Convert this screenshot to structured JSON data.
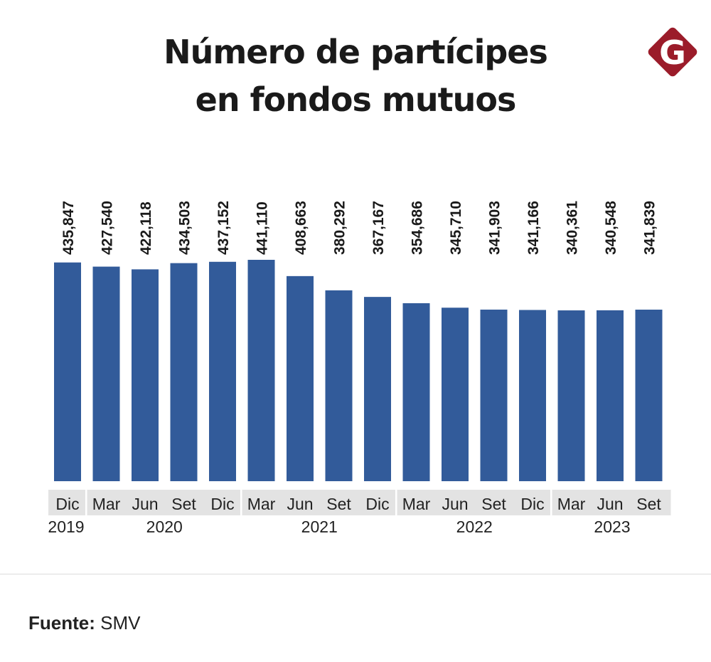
{
  "title_line1": "Número de partícipes",
  "title_line2": "en fondos mutuos",
  "logo": {
    "text": "G",
    "color": "#9b1c2a"
  },
  "source_label": "Fuente:",
  "source_value": "SMV",
  "chart_data": {
    "type": "bar",
    "bar_color": "#325b9a",
    "categories": [
      "Dic",
      "Mar",
      "Jun",
      "Set",
      "Dic",
      "Mar",
      "Jun",
      "Set",
      "Dic",
      "Mar",
      "Jun",
      "Set",
      "Dic",
      "Mar",
      "Jun",
      "Set"
    ],
    "values": [
      435847,
      427540,
      422118,
      434503,
      437152,
      441110,
      408663,
      380292,
      367167,
      354686,
      345710,
      341903,
      341166,
      340361,
      340548,
      341839
    ],
    "data_labels": [
      "435,847",
      "427,540",
      "422,118",
      "434,503",
      "437,152",
      "441,110",
      "408,663",
      "380,292",
      "367,167",
      "354,686",
      "345,710",
      "341,903",
      "341,166",
      "340,361",
      "340,548",
      "341,839"
    ],
    "year_groups": [
      {
        "year": "2019",
        "count": 1
      },
      {
        "year": "2020",
        "count": 4
      },
      {
        "year": "2021",
        "count": 4
      },
      {
        "year": "2022",
        "count": 4
      },
      {
        "year": "2023",
        "count": 3
      }
    ],
    "ylim": [
      0,
      441110
    ],
    "grid": false
  }
}
